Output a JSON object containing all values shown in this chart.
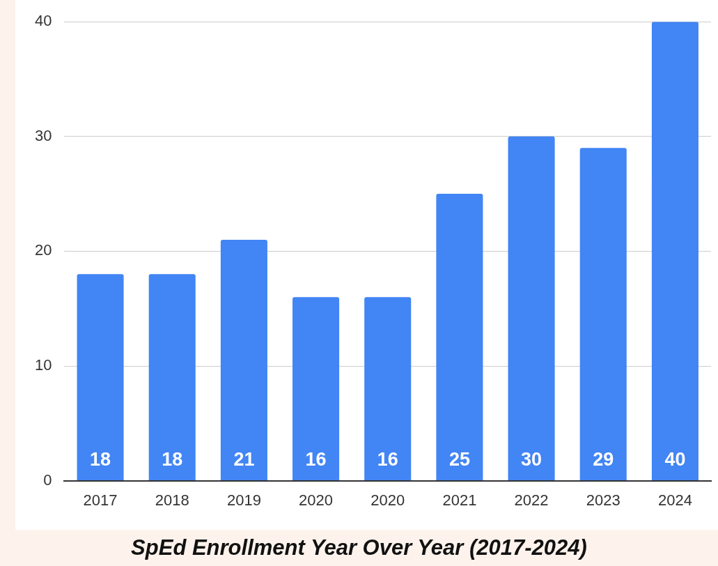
{
  "chart_data": {
    "type": "bar",
    "title": "SpEd Enrollment Year Over Year (2017-2024)",
    "categories": [
      "2017",
      "2018",
      "2019",
      "2020",
      "2020",
      "2021",
      "2022",
      "2023",
      "2024"
    ],
    "values": [
      18,
      18,
      21,
      16,
      16,
      25,
      30,
      29,
      40
    ],
    "color": "#4285f4",
    "ylim": [
      0,
      40
    ],
    "yticks": [
      0,
      10,
      20,
      30,
      40
    ],
    "grid": "y",
    "data_labels": true,
    "legend": false
  }
}
